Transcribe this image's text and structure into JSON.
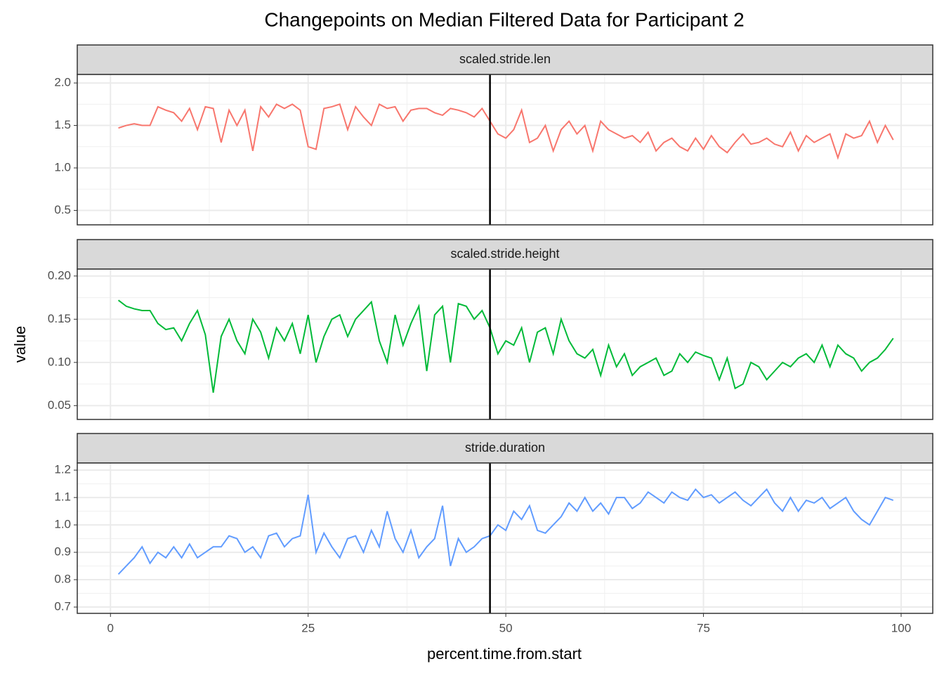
{
  "chart_data": {
    "type": "line",
    "title": "Changepoints on Median Filtered Data for Participant 2",
    "x_label": "percent.time.from.start",
    "y_label": "value",
    "xlim": [
      -4.2,
      104
    ],
    "xticks": [
      0,
      25,
      50,
      75,
      100
    ],
    "grid": true,
    "changepoint": 48,
    "x": [
      1,
      2,
      3,
      4,
      5,
      6,
      7,
      8,
      9,
      10,
      11,
      12,
      13,
      14,
      15,
      16,
      17,
      18,
      19,
      20,
      21,
      22,
      23,
      24,
      25,
      26,
      27,
      28,
      29,
      30,
      31,
      32,
      33,
      34,
      35,
      36,
      37,
      38,
      39,
      40,
      41,
      42,
      43,
      44,
      45,
      46,
      47,
      48,
      49,
      50,
      51,
      52,
      53,
      54,
      55,
      56,
      57,
      58,
      59,
      60,
      61,
      62,
      63,
      64,
      65,
      66,
      67,
      68,
      69,
      70,
      71,
      72,
      73,
      74,
      75,
      76,
      77,
      78,
      79,
      80,
      81,
      82,
      83,
      84,
      85,
      86,
      87,
      88,
      89,
      90,
      91,
      92,
      93,
      94,
      95,
      96,
      97,
      98,
      99
    ],
    "panels": [
      {
        "strip": "scaled.stride.len",
        "color": "#F8766D",
        "ylim": [
          0.33,
          2.1
        ],
        "yticks": [
          0.5,
          {
            "value": 1.0,
            "label": "1.0"
          },
          1.5,
          {
            "value": 2.0,
            "label": "2.0"
          }
        ],
        "values": [
          1.47,
          1.5,
          1.52,
          1.5,
          1.5,
          1.72,
          1.68,
          1.65,
          1.55,
          1.7,
          1.45,
          1.72,
          1.7,
          1.3,
          1.68,
          1.5,
          1.68,
          1.2,
          1.72,
          1.6,
          1.75,
          1.7,
          1.75,
          1.68,
          1.25,
          1.22,
          1.7,
          1.72,
          1.75,
          1.45,
          1.72,
          1.6,
          1.5,
          1.75,
          1.7,
          1.72,
          1.55,
          1.68,
          1.7,
          1.7,
          1.65,
          1.62,
          1.7,
          1.68,
          1.65,
          1.6,
          1.7,
          1.55,
          1.4,
          1.35,
          1.45,
          1.68,
          1.3,
          1.35,
          1.5,
          1.2,
          1.45,
          1.55,
          1.4,
          1.5,
          1.2,
          1.55,
          1.45,
          1.4,
          1.35,
          1.38,
          1.3,
          1.42,
          1.2,
          1.3,
          1.35,
          1.25,
          1.2,
          1.35,
          1.22,
          1.38,
          1.25,
          1.18,
          1.3,
          1.4,
          1.28,
          1.3,
          1.35,
          1.28,
          1.25,
          1.42,
          1.2,
          1.38,
          1.3,
          1.35,
          1.4,
          1.12,
          1.4,
          1.35,
          1.38,
          1.55,
          1.3,
          1.5,
          1.33
        ]
      },
      {
        "strip": "scaled.stride.height",
        "color": "#00BA38",
        "ylim": [
          0.034,
          0.208
        ],
        "yticks": [
          {
            "value": 0.05,
            "label": "0.05"
          },
          {
            "value": 0.1,
            "label": "0.10"
          },
          {
            "value": 0.15,
            "label": "0.15"
          },
          {
            "value": 0.2,
            "label": "0.20"
          }
        ],
        "values": [
          0.172,
          0.165,
          0.162,
          0.16,
          0.16,
          0.145,
          0.138,
          0.14,
          0.125,
          0.145,
          0.16,
          0.132,
          0.065,
          0.13,
          0.15,
          0.125,
          0.11,
          0.15,
          0.135,
          0.105,
          0.14,
          0.125,
          0.145,
          0.11,
          0.155,
          0.1,
          0.13,
          0.15,
          0.155,
          0.13,
          0.15,
          0.16,
          0.17,
          0.125,
          0.1,
          0.155,
          0.12,
          0.145,
          0.165,
          0.09,
          0.155,
          0.165,
          0.1,
          0.168,
          0.165,
          0.15,
          0.16,
          0.14,
          0.11,
          0.125,
          0.12,
          0.14,
          0.1,
          0.135,
          0.14,
          0.11,
          0.15,
          0.125,
          0.11,
          0.105,
          0.115,
          0.085,
          0.12,
          0.095,
          0.11,
          0.085,
          0.095,
          0.1,
          0.105,
          0.085,
          0.09,
          0.11,
          0.1,
          0.112,
          0.108,
          0.105,
          0.08,
          0.105,
          0.07,
          0.075,
          0.1,
          0.095,
          0.08,
          0.09,
          0.1,
          0.095,
          0.105,
          0.11,
          0.1,
          0.12,
          0.095,
          0.12,
          0.11,
          0.105,
          0.09,
          0.1,
          0.105,
          0.115,
          0.128
        ]
      },
      {
        "strip": "stride.duration",
        "color": "#619CFF",
        "ylim": [
          0.677,
          1.226
        ],
        "yticks": [
          0.7,
          0.8,
          0.9,
          {
            "value": 1.0,
            "label": "1.0"
          },
          1.1,
          1.2
        ],
        "values": [
          0.82,
          0.85,
          0.88,
          0.92,
          0.86,
          0.9,
          0.88,
          0.92,
          0.88,
          0.93,
          0.88,
          0.9,
          0.92,
          0.92,
          0.96,
          0.95,
          0.9,
          0.92,
          0.88,
          0.96,
          0.97,
          0.92,
          0.95,
          0.96,
          1.11,
          0.9,
          0.97,
          0.92,
          0.88,
          0.95,
          0.96,
          0.9,
          0.98,
          0.92,
          1.05,
          0.95,
          0.9,
          0.98,
          0.88,
          0.92,
          0.95,
          1.07,
          0.85,
          0.95,
          0.9,
          0.92,
          0.95,
          0.96,
          1.0,
          0.98,
          1.05,
          1.02,
          1.07,
          0.98,
          0.97,
          1.0,
          1.03,
          1.08,
          1.05,
          1.1,
          1.05,
          1.08,
          1.04,
          1.1,
          1.1,
          1.06,
          1.08,
          1.12,
          1.1,
          1.08,
          1.12,
          1.1,
          1.09,
          1.13,
          1.1,
          1.11,
          1.08,
          1.1,
          1.12,
          1.09,
          1.07,
          1.1,
          1.13,
          1.08,
          1.05,
          1.1,
          1.05,
          1.09,
          1.08,
          1.1,
          1.06,
          1.08,
          1.1,
          1.05,
          1.02,
          1.0,
          1.05,
          1.1,
          1.09
        ]
      }
    ]
  }
}
